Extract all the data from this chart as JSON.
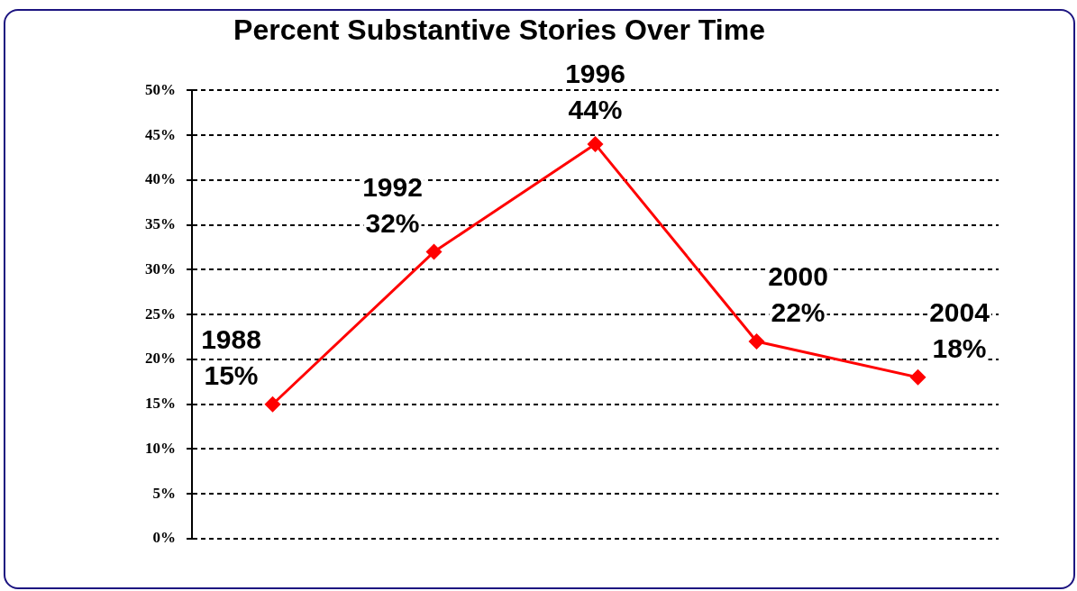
{
  "chart_data": {
    "type": "line",
    "title": "Percent Substantive Stories Over Time",
    "categories": [
      "1988",
      "1992",
      "1996",
      "2000",
      "2004"
    ],
    "series": [
      {
        "color": "#ff0000",
        "values": [
          15,
          32,
          44,
          22,
          18
        ],
        "value_labels": [
          "15%",
          "32%",
          "44%",
          "22%",
          "18%"
        ]
      }
    ],
    "ylim": [
      0,
      50
    ],
    "yticks": [
      {
        "value": 0,
        "label": "0%"
      },
      {
        "value": 5,
        "label": "5%"
      },
      {
        "value": 10,
        "label": "10%"
      },
      {
        "value": 15,
        "label": "15%"
      },
      {
        "value": 20,
        "label": "20%"
      },
      {
        "value": 25,
        "label": "25%"
      },
      {
        "value": 30,
        "label": "30%"
      },
      {
        "value": 35,
        "label": "35%"
      },
      {
        "value": 40,
        "label": "40%"
      },
      {
        "value": 45,
        "label": "45%"
      },
      {
        "value": 50,
        "label": "50%"
      }
    ],
    "grid": "y",
    "legend": false,
    "marker": "diamond",
    "line_style": "solid",
    "tick_labels": "y"
  }
}
